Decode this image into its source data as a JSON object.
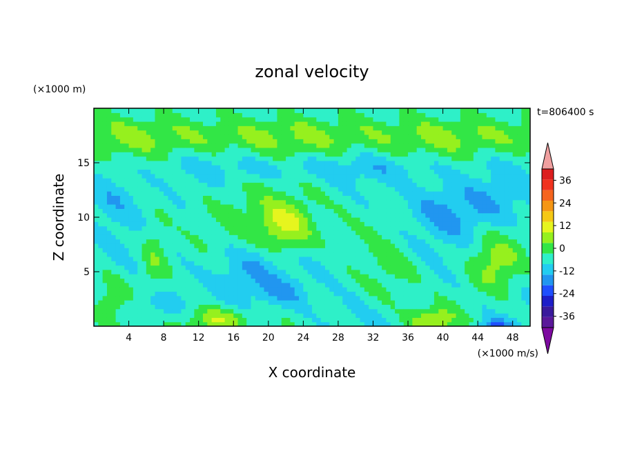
{
  "chart_data": {
    "type": "heatmap",
    "title": "zonal velocity",
    "xlabel": "X coordinate",
    "ylabel": "Z coordinate",
    "x_unit": "(×1000 m/s)",
    "z_unit": "(×1000 m)",
    "time_label": "t=806400 s",
    "xlim": [
      0,
      50
    ],
    "ylim": [
      0,
      20
    ],
    "x_ticks": [
      4,
      8,
      12,
      16,
      20,
      24,
      28,
      32,
      36,
      40,
      44,
      48
    ],
    "y_ticks": [
      5,
      10,
      15
    ],
    "colorbar": {
      "levels": [
        -42,
        -36,
        -30,
        -24,
        -18,
        -12,
        -6,
        0,
        6,
        12,
        18,
        24,
        30,
        36,
        42
      ],
      "colors": [
        "#5a189a",
        "#3a1a9c",
        "#1e1ec8",
        "#1f4fff",
        "#2196f0",
        "#22cdf0",
        "#2ef0c8",
        "#32e646",
        "#96f01e",
        "#e6f51e",
        "#f5c814",
        "#f59614",
        "#f5641e",
        "#f0321e",
        "#dc1e1e"
      ],
      "under_color": "#7d0aa0",
      "over_color": "#f0a0a0",
      "tick_labels": [
        "-36",
        "-24",
        "-12",
        "0",
        "12",
        "24",
        "36"
      ],
      "tick_values": [
        -36,
        -24,
        -12,
        0,
        12,
        24,
        36
      ]
    },
    "field_features": [
      {
        "x": 22,
        "z": 9.0,
        "amp": 15,
        "sx": 3.0,
        "sz": 2.2
      },
      {
        "x": 20,
        "z": 10.5,
        "amp": 7,
        "sx": 6.0,
        "sz": 3.0
      },
      {
        "x": 14,
        "z": 0.5,
        "amp": 17,
        "sx": 3.5,
        "sz": 1.2
      },
      {
        "x": 39,
        "z": 0.5,
        "amp": 17,
        "sx": 2.5,
        "sz": 1.2
      },
      {
        "x": 46,
        "z": 5.8,
        "amp": 13,
        "sx": 2.8,
        "sz": 2.5
      },
      {
        "x": 7,
        "z": 6.5,
        "amp": 9,
        "sx": 1.6,
        "sz": 3.5
      },
      {
        "x": 2,
        "z": 2.5,
        "amp": 8,
        "sx": 2.0,
        "sz": 2.0
      },
      {
        "x": 34,
        "z": 5,
        "amp": 6,
        "sx": 3.0,
        "sz": 3.0
      },
      {
        "x": 18,
        "z": 5,
        "amp": -8,
        "sx": 4.0,
        "sz": 2.5
      },
      {
        "x": 22,
        "z": 3,
        "amp": -8,
        "sx": 3.0,
        "sz": 1.5
      },
      {
        "x": 7,
        "z": 2,
        "amp": -7,
        "sx": 2.5,
        "sz": 1.2
      },
      {
        "x": 40,
        "z": 10.5,
        "amp": -8,
        "sx": 4.0,
        "sz": 2.5
      },
      {
        "x": 46,
        "z": 11.5,
        "amp": -7,
        "sx": 4.0,
        "sz": 2.5
      },
      {
        "x": 46,
        "z": 0.1,
        "amp": -14,
        "sx": 1.8,
        "sz": 0.6
      },
      {
        "x": 25,
        "z": 14.5,
        "amp": -6,
        "sx": 15.0,
        "sz": 1.2
      },
      {
        "x": 2,
        "z": 11.5,
        "amp": -6,
        "sx": 3.0,
        "sz": 2.5
      }
    ]
  }
}
